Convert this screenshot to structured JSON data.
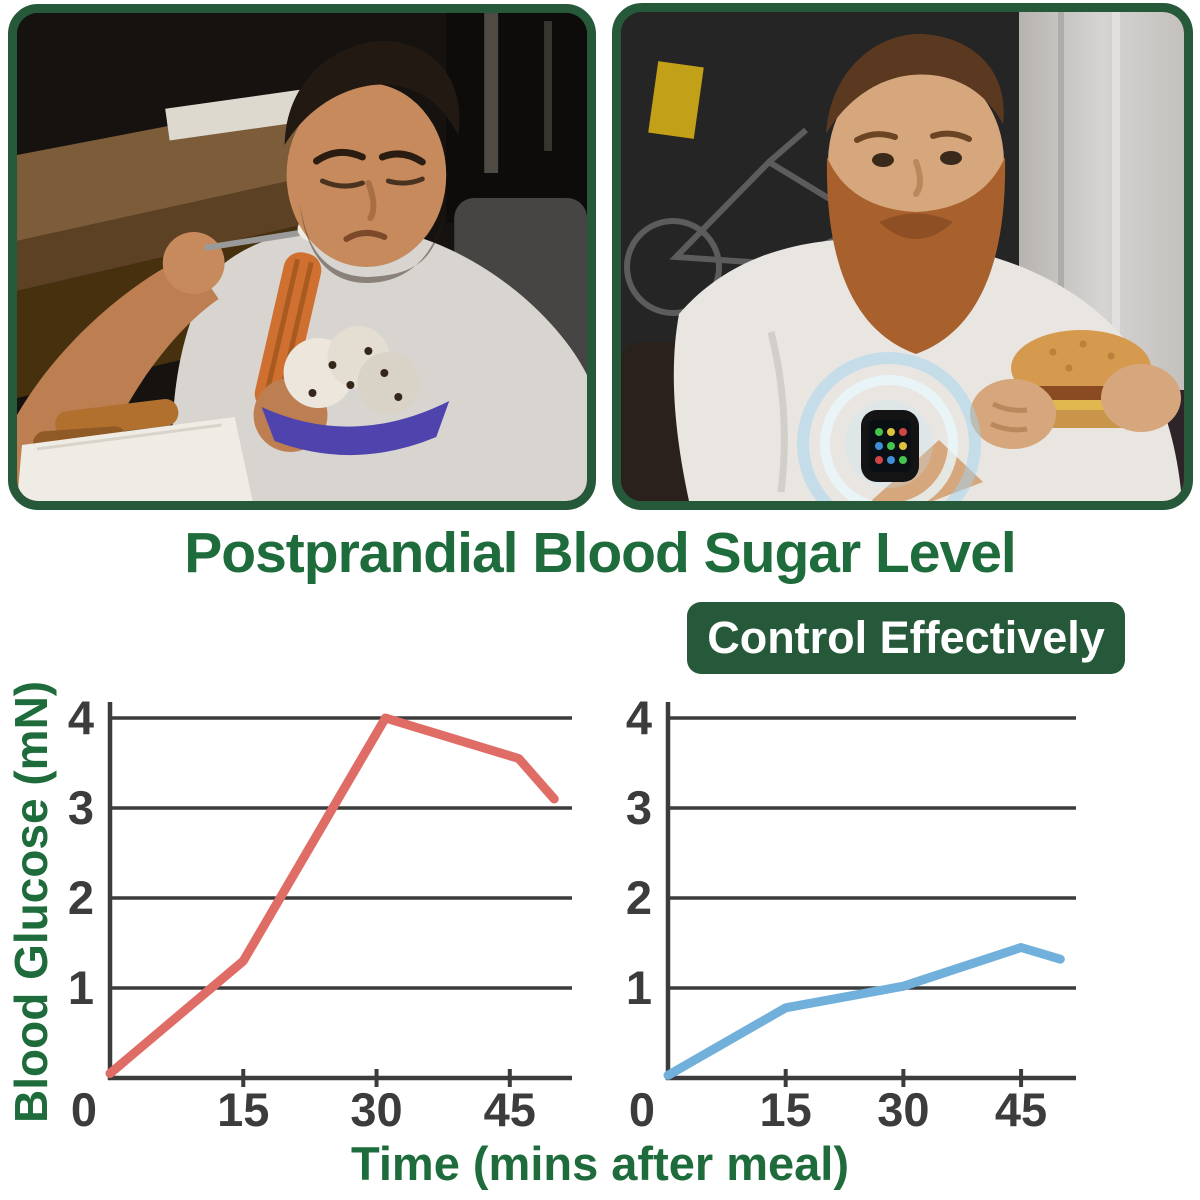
{
  "page": {
    "title": "Postprandial Blood Sugar Level",
    "badge": "Control Effectively"
  },
  "axis_labels": {
    "y": "Blood Glucose (mN)",
    "x": "Time (mins after meal)"
  },
  "colors": {
    "green_text": "#1e6b3b",
    "green_frame": "#26593a",
    "axis": "#3c3c3c",
    "red_line": "#e06c66",
    "blue_line": "#72b0dc"
  },
  "chart_data": [
    {
      "type": "line",
      "name": "uncontrolled-blood-sugar",
      "x": [
        0,
        15,
        31,
        46,
        50
      ],
      "values": [
        0.05,
        1.3,
        4.0,
        3.55,
        3.1
      ],
      "line_color": "#e06c66",
      "xticks": [
        0,
        15,
        30,
        45
      ],
      "yticks": [
        1,
        2,
        3,
        4
      ],
      "origin_label": "0",
      "xlim": [
        0,
        52
      ],
      "ylim": [
        0,
        4
      ],
      "grid": true,
      "legend": "none",
      "xlabel": "Time (mins after meal)",
      "ylabel": "Blood Glucose (mN)"
    },
    {
      "type": "line",
      "name": "controlled-blood-sugar",
      "x": [
        0,
        15,
        30,
        45,
        50
      ],
      "values": [
        0.03,
        0.78,
        1.02,
        1.45,
        1.32
      ],
      "line_color": "#72b0dc",
      "xticks": [
        0,
        15,
        30,
        45
      ],
      "yticks": [
        1,
        2,
        3,
        4
      ],
      "origin_label": "0",
      "xlim": [
        0,
        52
      ],
      "ylim": [
        0,
        4
      ],
      "grid": true,
      "legend": "none",
      "xlabel": "Time (mins after meal)",
      "ylabel": "Blood Glucose (mN)"
    }
  ]
}
